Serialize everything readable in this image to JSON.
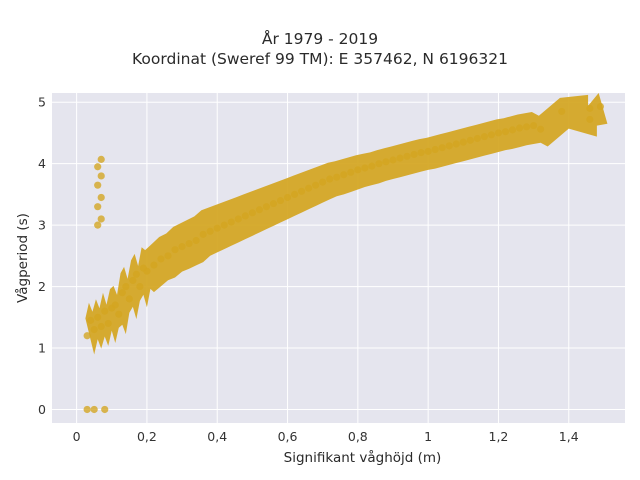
{
  "chart_data": {
    "type": "scatter",
    "title": "År 1979 - 2019",
    "subtitle": "Koordinat (Sweref 99 TM): E 357462, N 6196321",
    "xlabel": "Signifikant våghöjd (m)",
    "ylabel": "Vågperiod (s)",
    "xlim": [
      -0.07,
      1.56
    ],
    "ylim": [
      -0.22,
      5.15
    ],
    "x_ticks": [
      0,
      0.2,
      0.4,
      0.6,
      0.8,
      1,
      1.2,
      1.4
    ],
    "x_tick_labels": [
      "0",
      "0,2",
      "0,4",
      "0,6",
      "0,8",
      "1",
      "1,2",
      "1,4"
    ],
    "y_ticks": [
      0,
      1,
      2,
      3,
      4,
      5
    ],
    "y_tick_labels": [
      "0",
      "1",
      "2",
      "3",
      "4",
      "5"
    ],
    "grid": true,
    "marker_color": "#D4A520",
    "background_color": "#E5E5EE",
    "series": [
      {
        "points": [
          [
            0.03,
            1.2
          ],
          [
            0.04,
            1.45
          ],
          [
            0.05,
            1.3
          ],
          [
            0.06,
            1.5
          ],
          [
            0.07,
            1.35
          ],
          [
            0.08,
            1.6
          ],
          [
            0.09,
            1.4
          ],
          [
            0.1,
            1.65
          ],
          [
            0.11,
            1.7
          ],
          [
            0.12,
            1.55
          ],
          [
            0.13,
            1.9
          ],
          [
            0.14,
            2.0
          ],
          [
            0.15,
            1.8
          ],
          [
            0.16,
            2.1
          ],
          [
            0.17,
            2.2
          ],
          [
            0.18,
            2.0
          ],
          [
            0.19,
            2.3
          ],
          [
            0.2,
            2.25
          ],
          [
            0.22,
            2.35
          ],
          [
            0.24,
            2.45
          ],
          [
            0.26,
            2.5
          ],
          [
            0.28,
            2.6
          ],
          [
            0.3,
            2.65
          ],
          [
            0.32,
            2.7
          ],
          [
            0.34,
            2.75
          ],
          [
            0.36,
            2.85
          ],
          [
            0.38,
            2.9
          ],
          [
            0.4,
            2.95
          ],
          [
            0.42,
            3.0
          ],
          [
            0.44,
            3.05
          ],
          [
            0.46,
            3.1
          ],
          [
            0.48,
            3.15
          ],
          [
            0.5,
            3.2
          ],
          [
            0.52,
            3.25
          ],
          [
            0.54,
            3.3
          ],
          [
            0.56,
            3.35
          ],
          [
            0.58,
            3.4
          ],
          [
            0.6,
            3.45
          ],
          [
            0.62,
            3.5
          ],
          [
            0.64,
            3.55
          ],
          [
            0.66,
            3.6
          ],
          [
            0.68,
            3.65
          ],
          [
            0.7,
            3.7
          ],
          [
            0.72,
            3.75
          ],
          [
            0.74,
            3.78
          ],
          [
            0.76,
            3.82
          ],
          [
            0.78,
            3.86
          ],
          [
            0.8,
            3.9
          ],
          [
            0.82,
            3.93
          ],
          [
            0.84,
            3.96
          ],
          [
            0.86,
            4.0
          ],
          [
            0.88,
            4.03
          ],
          [
            0.9,
            4.06
          ],
          [
            0.92,
            4.09
          ],
          [
            0.94,
            4.12
          ],
          [
            0.96,
            4.15
          ],
          [
            0.98,
            4.18
          ],
          [
            1.0,
            4.2
          ],
          [
            1.02,
            4.23
          ],
          [
            1.04,
            4.26
          ],
          [
            1.06,
            4.29
          ],
          [
            1.08,
            4.32
          ],
          [
            1.1,
            4.35
          ],
          [
            1.12,
            4.38
          ],
          [
            1.14,
            4.41
          ],
          [
            1.16,
            4.44
          ],
          [
            1.18,
            4.47
          ],
          [
            1.2,
            4.5
          ],
          [
            1.22,
            4.52
          ],
          [
            1.24,
            4.55
          ],
          [
            1.26,
            4.58
          ],
          [
            1.28,
            4.6
          ],
          [
            1.3,
            4.62
          ],
          [
            1.32,
            4.56
          ],
          [
            1.38,
            4.85
          ],
          [
            1.46,
            4.9
          ],
          [
            1.46,
            4.72
          ],
          [
            1.49,
            4.93
          ],
          [
            0.07,
            4.07
          ],
          [
            0.06,
            3.95
          ],
          [
            0.07,
            3.8
          ],
          [
            0.06,
            3.65
          ],
          [
            0.07,
            3.45
          ],
          [
            0.06,
            3.3
          ],
          [
            0.07,
            3.1
          ],
          [
            0.06,
            3.0
          ],
          [
            0.03,
            0.0
          ],
          [
            0.05,
            0.0
          ],
          [
            0.08,
            0.0
          ]
        ]
      }
    ]
  }
}
